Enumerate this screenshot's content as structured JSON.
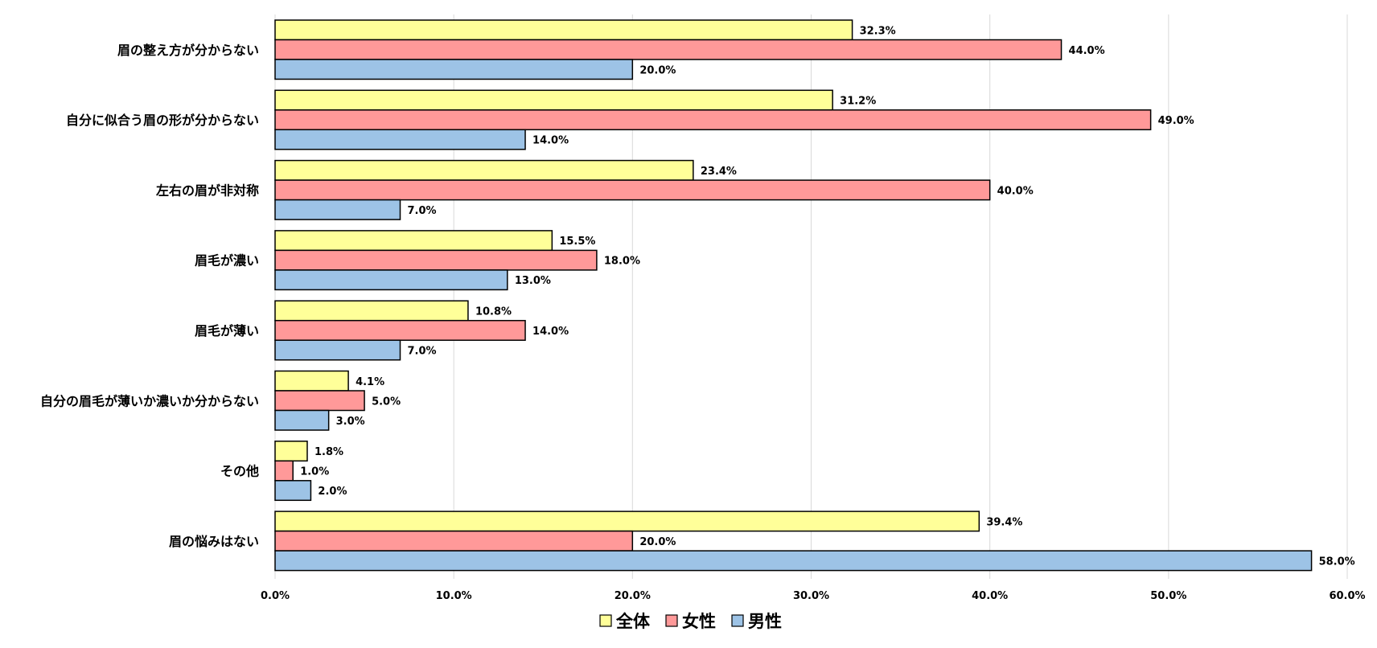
{
  "chart_data": {
    "type": "bar",
    "orientation": "horizontal",
    "title": "",
    "xlabel": "",
    "ylabel": "",
    "xlim": [
      0,
      60
    ],
    "x_ticks": [
      0,
      10,
      20,
      30,
      40,
      50,
      60
    ],
    "x_tick_labels": [
      "0.0%",
      "10.0%",
      "20.0%",
      "30.0%",
      "40.0%",
      "50.0%",
      "60.0%"
    ],
    "grid": true,
    "legend_position": "bottom-center",
    "categories": [
      "眉の整え方が分からない",
      "自分に似合う眉の形が分からない",
      "左右の眉が非対称",
      "眉毛が濃い",
      "眉毛が薄い",
      "自分の眉毛が薄いか濃いか分からない",
      "その他",
      "眉の悩みはない"
    ],
    "series": [
      {
        "name": "全体",
        "color": "#ffff99",
        "values": [
          32.3,
          31.2,
          23.4,
          15.5,
          10.8,
          4.1,
          1.8,
          39.4
        ],
        "labels": [
          "32.3%",
          "31.2%",
          "23.4%",
          "15.5%",
          "10.8%",
          "4.1%",
          "1.8%",
          "39.4%"
        ]
      },
      {
        "name": "女性",
        "color": "#ff9999",
        "values": [
          44.0,
          49.0,
          40.0,
          18.0,
          14.0,
          5.0,
          1.0,
          20.0
        ],
        "labels": [
          "44.0%",
          "49.0%",
          "40.0%",
          "18.0%",
          "14.0%",
          "5.0%",
          "1.0%",
          "20.0%"
        ]
      },
      {
        "name": "男性",
        "color": "#9dc3e6",
        "values": [
          20.0,
          14.0,
          7.0,
          13.0,
          7.0,
          3.0,
          2.0,
          58.0
        ],
        "labels": [
          "20.0%",
          "14.0%",
          "7.0%",
          "13.0%",
          "7.0%",
          "3.0%",
          "2.0%",
          "58.0%"
        ]
      }
    ]
  }
}
